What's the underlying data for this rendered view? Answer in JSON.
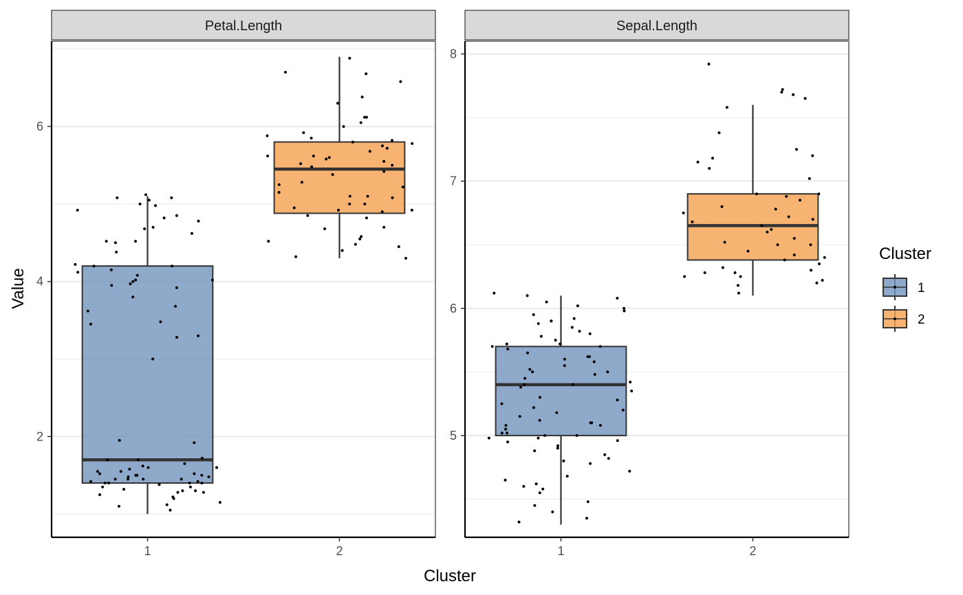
{
  "chart_data": {
    "type": "boxplot",
    "facet_layout": "1x2, independent y scales",
    "xlabel": "Cluster",
    "ylabel": "Value",
    "categories": [
      "1",
      "2"
    ],
    "grid": "horizontal major and minor",
    "legend": {
      "title": "Cluster",
      "placement": "right",
      "entries": [
        {
          "label": "1",
          "color": "#7393bd"
        },
        {
          "label": "2",
          "color": "#f5a04f"
        }
      ]
    },
    "panels": [
      {
        "strip": "Petal.Length",
        "ylim": [
          0.7,
          7.1
        ],
        "yticks": [
          2,
          4,
          6
        ],
        "minor_ticks": [
          1,
          3,
          5,
          7
        ],
        "boxes": [
          {
            "cluster": "1",
            "min": 1.0,
            "q1": 1.4,
            "median": 1.7,
            "q3": 4.2,
            "max": 5.1
          },
          {
            "cluster": "2",
            "min": 4.3,
            "q1": 4.88,
            "median": 5.45,
            "q3": 5.8,
            "max": 6.9
          }
        ],
        "points": [
          {
            "cluster": "1",
            "values": [
              1.05,
              1.1,
              1.12,
              1.15,
              1.2,
              1.22,
              1.25,
              1.28,
              1.28,
              1.3,
              1.3,
              1.32,
              1.35,
              1.35,
              1.38,
              1.4,
              1.4,
              1.4,
              1.4,
              1.42,
              1.42,
              1.45,
              1.45,
              1.45,
              1.45,
              1.48,
              1.48,
              1.5,
              1.5,
              1.5,
              1.52,
              1.52,
              1.55,
              1.55,
              1.58,
              1.6,
              1.6,
              1.62,
              1.65,
              1.7,
              1.7,
              1.72,
              1.92,
              1.95,
              3.0,
              3.3,
              3.28,
              3.45,
              3.48,
              3.62,
              3.68,
              3.8,
              3.92,
              3.95,
              3.97,
              4.0,
              4.02,
              4.02,
              4.08,
              4.12,
              4.15,
              4.2,
              4.2,
              4.22,
              4.38,
              4.5,
              4.52,
              4.52,
              4.62,
              4.68,
              4.7,
              4.78,
              4.82,
              4.85,
              4.92,
              4.98,
              5.0,
              5.05,
              5.08,
              5.08,
              5.12
            ]
          },
          {
            "cluster": "2",
            "values": [
              4.3,
              4.32,
              4.4,
              4.45,
              4.48,
              4.52,
              4.55,
              4.58,
              4.68,
              4.7,
              4.82,
              4.85,
              4.9,
              4.92,
              4.92,
              4.95,
              5.0,
              5.0,
              5.08,
              5.1,
              5.1,
              5.15,
              5.22,
              5.25,
              5.28,
              5.38,
              5.42,
              5.48,
              5.5,
              5.52,
              5.55,
              5.58,
              5.6,
              5.62,
              5.62,
              5.68,
              5.72,
              5.75,
              5.78,
              5.8,
              5.82,
              5.85,
              5.88,
              5.92,
              6.0,
              6.05,
              6.12,
              6.12,
              6.3,
              6.38,
              6.58,
              6.68,
              6.7,
              6.88
            ]
          }
        ]
      },
      {
        "strip": "Sepal.Length",
        "ylim": [
          4.2,
          8.1
        ],
        "yticks": [
          5,
          6,
          7,
          8
        ],
        "minor_ticks": [
          4.5,
          5.5,
          6.5,
          7.5
        ],
        "boxes": [
          {
            "cluster": "1",
            "min": 4.3,
            "q1": 5.0,
            "median": 5.4,
            "q3": 5.7,
            "max": 6.1
          },
          {
            "cluster": "2",
            "min": 6.1,
            "q1": 6.38,
            "median": 6.65,
            "q3": 6.9,
            "max": 7.6
          }
        ],
        "points": [
          {
            "cluster": "1",
            "values": [
              4.32,
              4.35,
              4.4,
              4.45,
              4.48,
              4.55,
              4.58,
              4.6,
              4.62,
              4.65,
              4.68,
              4.72,
              4.78,
              4.8,
              4.82,
              4.85,
              4.88,
              4.9,
              4.92,
              4.95,
              4.96,
              4.98,
              4.98,
              5.0,
              5.0,
              5.02,
              5.02,
              5.05,
              5.08,
              5.08,
              5.1,
              5.1,
              5.12,
              5.15,
              5.18,
              5.2,
              5.22,
              5.25,
              5.28,
              5.3,
              5.35,
              5.38,
              5.4,
              5.4,
              5.42,
              5.45,
              5.48,
              5.5,
              5.5,
              5.52,
              5.55,
              5.58,
              5.6,
              5.62,
              5.62,
              5.65,
              5.68,
              5.7,
              5.7,
              5.72,
              5.72,
              5.75,
              5.78,
              5.8,
              5.82,
              5.85,
              5.88,
              5.9,
              5.9,
              5.92,
              5.95,
              5.98,
              6.0,
              6.02,
              6.05,
              6.08,
              6.1,
              6.12
            ]
          },
          {
            "cluster": "2",
            "values": [
              6.12,
              6.18,
              6.2,
              6.22,
              6.25,
              6.25,
              6.28,
              6.28,
              6.3,
              6.32,
              6.35,
              6.38,
              6.4,
              6.42,
              6.45,
              6.5,
              6.5,
              6.52,
              6.55,
              6.6,
              6.62,
              6.65,
              6.68,
              6.7,
              6.72,
              6.75,
              6.78,
              6.8,
              6.85,
              6.88,
              6.9,
              6.9,
              7.02,
              7.1,
              7.15,
              7.18,
              7.2,
              7.25,
              7.38,
              7.58,
              7.65,
              7.68,
              7.7,
              7.72,
              7.92
            ]
          }
        ]
      }
    ]
  }
}
